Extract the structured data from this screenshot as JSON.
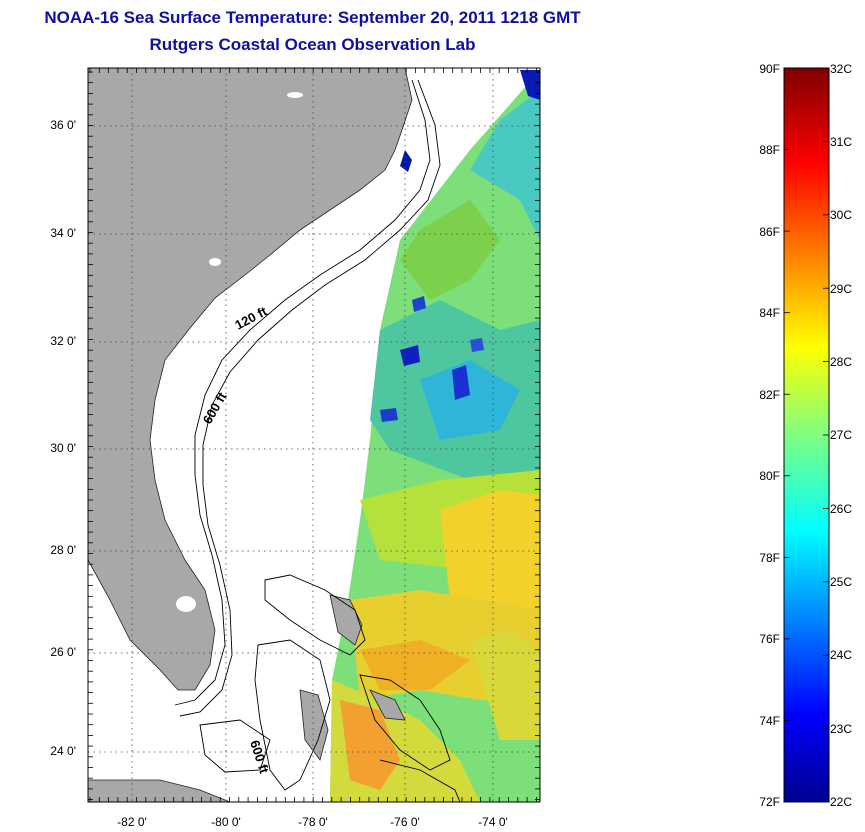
{
  "title_line1": "NOAA-16 Sea Surface Temperature:  September 20, 2011 1218 GMT",
  "title_line2": "Rutgers Coastal Ocean Observation Lab",
  "map": {
    "lat_labels": [
      "36 0'",
      "34 0'",
      "32 0'",
      "30 0'",
      "28 0'",
      "26 0'",
      "24 0'"
    ],
    "lon_labels": [
      "-82 0'",
      "-80 0'",
      "-78 0'",
      "-76 0'",
      "-74 0'"
    ],
    "contour_labels": [
      "120 ft",
      "600 ft",
      "600 ft"
    ],
    "land_color": "#a8a8a8",
    "grid": "dotted"
  },
  "colorbar": {
    "fahrenheit": [
      "90F",
      "88F",
      "86F",
      "84F",
      "82F",
      "80F",
      "78F",
      "76F",
      "74F",
      "72F"
    ],
    "celsius": [
      "32C",
      "31C",
      "30C",
      "29C",
      "28C",
      "27C",
      "26C",
      "25C",
      "24C",
      "23C",
      "22C"
    ],
    "colormap": "jet"
  }
}
